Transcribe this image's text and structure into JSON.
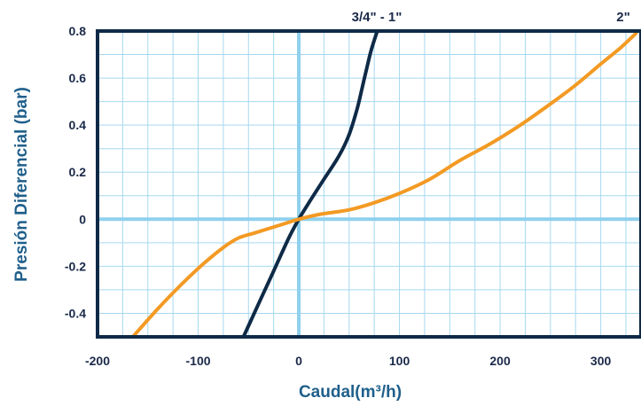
{
  "chart_data": {
    "type": "line",
    "xlabel": "Caudal(m³/h)",
    "ylabel": "Presión Diferencial (bar)",
    "xlim": [
      -200,
      340
    ],
    "ylim": [
      -0.5,
      0.8
    ],
    "x_ticks": [
      -200,
      -100,
      0,
      100,
      200,
      300
    ],
    "x_tick_labels": [
      "-200",
      "-100",
      "0",
      "100",
      "200",
      "300"
    ],
    "y_ticks": [
      -0.4,
      -0.2,
      0,
      0.2,
      0.4,
      0.6,
      0.8
    ],
    "y_tick_labels": [
      "-0.4",
      "-0.2",
      "0",
      "0.2",
      "0.4",
      "0.6",
      "0.8"
    ],
    "grid": true,
    "series": [
      {
        "name": "3/4\" - 1\"",
        "color": "#0e2a47",
        "points": [
          [
            -55,
            -0.5
          ],
          [
            -40,
            -0.36
          ],
          [
            -25,
            -0.22
          ],
          [
            -10,
            -0.08
          ],
          [
            0,
            0.0
          ],
          [
            10,
            0.07
          ],
          [
            25,
            0.17
          ],
          [
            40,
            0.27
          ],
          [
            50,
            0.36
          ],
          [
            58,
            0.47
          ],
          [
            63,
            0.56
          ],
          [
            68,
            0.65
          ],
          [
            72,
            0.72
          ],
          [
            78,
            0.8
          ]
        ]
      },
      {
        "name": "2\"",
        "color": "#f39a24",
        "points": [
          [
            -165,
            -0.5
          ],
          [
            -140,
            -0.38
          ],
          [
            -115,
            -0.27
          ],
          [
            -95,
            -0.19
          ],
          [
            -75,
            -0.12
          ],
          [
            -60,
            -0.08
          ],
          [
            -45,
            -0.06
          ],
          [
            -30,
            -0.04
          ],
          [
            -15,
            -0.02
          ],
          [
            0,
            0.0
          ],
          [
            20,
            0.02
          ],
          [
            50,
            0.04
          ],
          [
            75,
            0.07
          ],
          [
            100,
            0.11
          ],
          [
            130,
            0.17
          ],
          [
            160,
            0.25
          ],
          [
            190,
            0.32
          ],
          [
            220,
            0.4
          ],
          [
            250,
            0.49
          ],
          [
            275,
            0.57
          ],
          [
            300,
            0.66
          ],
          [
            320,
            0.73
          ],
          [
            335,
            0.79
          ]
        ]
      }
    ]
  }
}
